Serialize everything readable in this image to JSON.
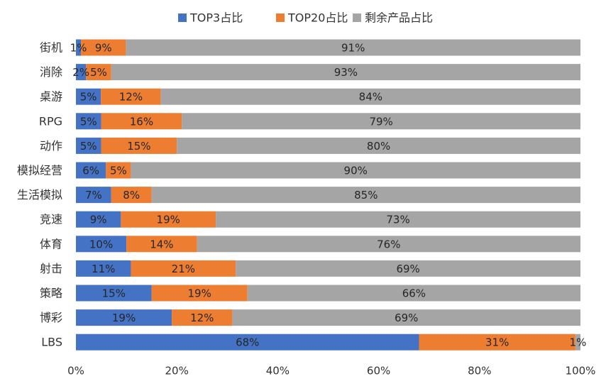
{
  "chart_data": {
    "type": "bar",
    "orientation": "horizontal",
    "stacked": true,
    "percent": true,
    "categories": [
      "街机",
      "消除",
      "桌游",
      "RPG",
      "动作",
      "模拟经营",
      "生活模拟",
      "竞速",
      "体育",
      "射击",
      "策略",
      "博彩",
      "LBS"
    ],
    "series": [
      {
        "name": "TOP3占比",
        "color": "#4472C4",
        "values": [
          1,
          2,
          5,
          5,
          5,
          6,
          7,
          9,
          10,
          11,
          15,
          19,
          68
        ],
        "labels": [
          "1%",
          "2%",
          "5%",
          "5%",
          "5%",
          "6%",
          "7%",
          "9%",
          "10%",
          "11%",
          "15%",
          "19%",
          "68%"
        ]
      },
      {
        "name": "TOP20占比",
        "color": "#ED7D31",
        "values": [
          9,
          5,
          12,
          16,
          15,
          5,
          8,
          19,
          14,
          21,
          19,
          12,
          31
        ],
        "labels": [
          "9%",
          "5%",
          "12%",
          "16%",
          "15%",
          "5%",
          "8%",
          "19%",
          "14%",
          "21%",
          "19%",
          "12%",
          "31%"
        ]
      },
      {
        "name": "剩余产品占比",
        "color": "#A5A5A5",
        "values": [
          91,
          93,
          84,
          79,
          80,
          90,
          85,
          73,
          76,
          69,
          66,
          69,
          1
        ],
        "labels": [
          "91%",
          "93%",
          "84%",
          "79%",
          "80%",
          "90%",
          "85%",
          "73%",
          "76%",
          "69%",
          "66%",
          "69%",
          "1%"
        ]
      }
    ],
    "xaxis": {
      "ticks": [
        0,
        20,
        40,
        60,
        80,
        100
      ],
      "tick_labels": [
        "0%",
        "20%",
        "40%",
        "60%",
        "80%",
        "100%"
      ],
      "range": [
        0,
        100
      ]
    },
    "title": "",
    "xlabel": "",
    "ylabel": "",
    "legend_position": "top",
    "grid": false
  }
}
